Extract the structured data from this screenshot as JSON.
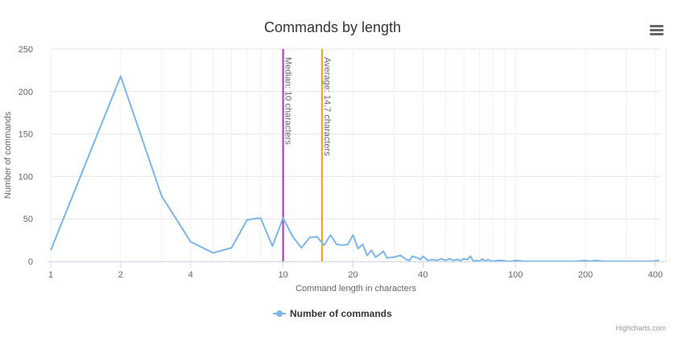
{
  "chart_data": {
    "type": "line",
    "title": "Commands by length",
    "xlabel": "Command length in characters",
    "ylabel": "Number of commands",
    "x_scale": "log",
    "xlim": [
      1,
      420
    ],
    "ylim": [
      0,
      250
    ],
    "x_ticks": [
      1,
      2,
      4,
      10,
      20,
      40,
      100,
      200,
      400
    ],
    "y_ticks": [
      0,
      50,
      100,
      150,
      200,
      250
    ],
    "grid": true,
    "legend_position": "bottom-center",
    "series": [
      {
        "name": "Number of commands",
        "color": "#7cb5ec",
        "points": [
          [
            1,
            13
          ],
          [
            2,
            218
          ],
          [
            3,
            77
          ],
          [
            4,
            23
          ],
          [
            5,
            10
          ],
          [
            6,
            16
          ],
          [
            7,
            49
          ],
          [
            8,
            51
          ],
          [
            9,
            18
          ],
          [
            10,
            51
          ],
          [
            11,
            29
          ],
          [
            12,
            16
          ],
          [
            13,
            28
          ],
          [
            14,
            29
          ],
          [
            15,
            19
          ],
          [
            16,
            31
          ],
          [
            17,
            20
          ],
          [
            18,
            19
          ],
          [
            19,
            20
          ],
          [
            20,
            31
          ],
          [
            21,
            15
          ],
          [
            22,
            20
          ],
          [
            23,
            7
          ],
          [
            24,
            13
          ],
          [
            25,
            5
          ],
          [
            26,
            8
          ],
          [
            27,
            12
          ],
          [
            28,
            4
          ],
          [
            30,
            5
          ],
          [
            32,
            7
          ],
          [
            34,
            2
          ],
          [
            35,
            1
          ],
          [
            36,
            6
          ],
          [
            38,
            4
          ],
          [
            39,
            2
          ],
          [
            40,
            6
          ],
          [
            42,
            1
          ],
          [
            44,
            2
          ],
          [
            46,
            1
          ],
          [
            48,
            3
          ],
          [
            50,
            1
          ],
          [
            52,
            3
          ],
          [
            54,
            1
          ],
          [
            56,
            2
          ],
          [
            58,
            1
          ],
          [
            60,
            3
          ],
          [
            62,
            2
          ],
          [
            64,
            6
          ],
          [
            66,
            0
          ],
          [
            68,
            1
          ],
          [
            70,
            0
          ],
          [
            72,
            3
          ],
          [
            74,
            0
          ],
          [
            76,
            2
          ],
          [
            78,
            1
          ],
          [
            80,
            0
          ],
          [
            84,
            1
          ],
          [
            88,
            1
          ],
          [
            92,
            0
          ],
          [
            96,
            0
          ],
          [
            100,
            1
          ],
          [
            110,
            0
          ],
          [
            120,
            0
          ],
          [
            130,
            0
          ],
          [
            140,
            0
          ],
          [
            150,
            0
          ],
          [
            160,
            0
          ],
          [
            180,
            0
          ],
          [
            200,
            1
          ],
          [
            210,
            0
          ],
          [
            220,
            1
          ],
          [
            240,
            0
          ],
          [
            260,
            0
          ],
          [
            300,
            0
          ],
          [
            340,
            0
          ],
          [
            380,
            0
          ],
          [
            415,
            1
          ]
        ]
      }
    ],
    "plot_lines": [
      {
        "value": 10,
        "color": "#b22cc9",
        "label": "Median: 10 characters"
      },
      {
        "value": 14.7,
        "color": "#f0a30a",
        "label": "Average: 14.7 characters"
      }
    ]
  },
  "menu_icon": "hamburger-menu-icon",
  "credits": "Highcharts.com"
}
